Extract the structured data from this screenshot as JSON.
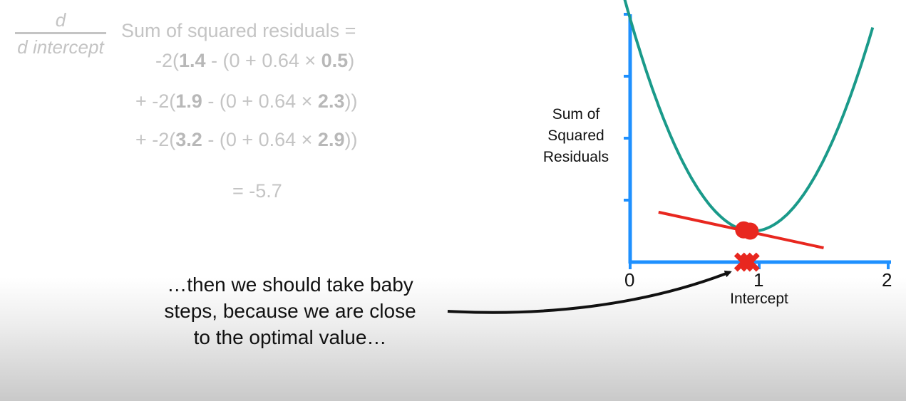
{
  "equation": {
    "frac_num": "d",
    "frac_den": "d intercept",
    "lhs": "Sum of squared residuals =",
    "terms": [
      {
        "pre": "-2(",
        "obs": "1.4",
        "mid": " - (0 + 0.64 × ",
        "x": "0.5",
        "post": ")"
      },
      {
        "pre": "+ -2(",
        "obs": "1.9",
        "mid": " - (0 + 0.64 × ",
        "x": "2.3",
        "post": "))"
      },
      {
        "pre": "+ -2(",
        "obs": "3.2",
        "mid": " - (0 + 0.64 × ",
        "x": "2.9",
        "post": "))"
      }
    ],
    "result": "= -5.7"
  },
  "callout": {
    "lines": [
      "…then we should take baby",
      "steps, because we are close",
      "to the optimal value…"
    ]
  },
  "chart_data": {
    "type": "line",
    "xlabel": "Intercept",
    "ylabel_lines": [
      "Sum of",
      "Squared",
      "Residuals"
    ],
    "x_ticks": [
      "0",
      "1",
      "2"
    ],
    "xlim": [
      0,
      2
    ],
    "ylim": [
      0,
      4
    ],
    "curve": {
      "color": "#1a9a8a",
      "min_x": 0.95,
      "min_y": 0.5,
      "curvature": 3.8,
      "x_range": [
        -0.15,
        1.88
      ]
    },
    "points": [
      {
        "x": 0.88,
        "y": 0.52
      },
      {
        "x": 0.93,
        "y": 0.5
      }
    ],
    "tangent": {
      "x_range": [
        0.22,
        1.5
      ],
      "slope": -0.45,
      "through": {
        "x": 0.9,
        "y": 0.5
      }
    },
    "x_markers": [
      0.88,
      0.93
    ],
    "colors": {
      "axis": "#1e90ff",
      "points": "#e8271f",
      "tangent": "#e8271f",
      "markers": "#e8271f"
    }
  }
}
